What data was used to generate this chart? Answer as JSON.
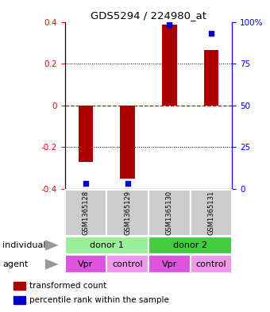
{
  "title": "GDS5294 / 224980_at",
  "samples": [
    "GSM1365128",
    "GSM1365129",
    "GSM1365130",
    "GSM1365131"
  ],
  "bar_values": [
    -0.27,
    -0.35,
    0.385,
    0.265
  ],
  "percentile_values": [
    -0.375,
    -0.375,
    0.385,
    0.345
  ],
  "ylim": [
    -0.4,
    0.4
  ],
  "yticks_left": [
    -0.4,
    -0.2,
    0.0,
    0.2,
    0.4
  ],
  "yticks_right": [
    0,
    25,
    50,
    75,
    100
  ],
  "bar_color": "#aa0000",
  "dot_color": "#0000cc",
  "zero_line_color": "#cc0000",
  "individual_colors": [
    "#99ee99",
    "#44cc44"
  ],
  "agent_colors": [
    "#dd55dd",
    "#ee99ee",
    "#dd55dd",
    "#ee99ee"
  ],
  "sample_box_color": "#cccccc",
  "legend_bar_label": "transformed count",
  "legend_dot_label": "percentile rank within the sample",
  "individual_row_label": "individual",
  "agent_row_label": "agent",
  "agent_labels": [
    "Vpr",
    "control",
    "Vpr",
    "control"
  ],
  "individual_spans": [
    [
      0,
      2,
      "donor 1",
      0
    ],
    [
      2,
      4,
      "donor 2",
      1
    ]
  ]
}
